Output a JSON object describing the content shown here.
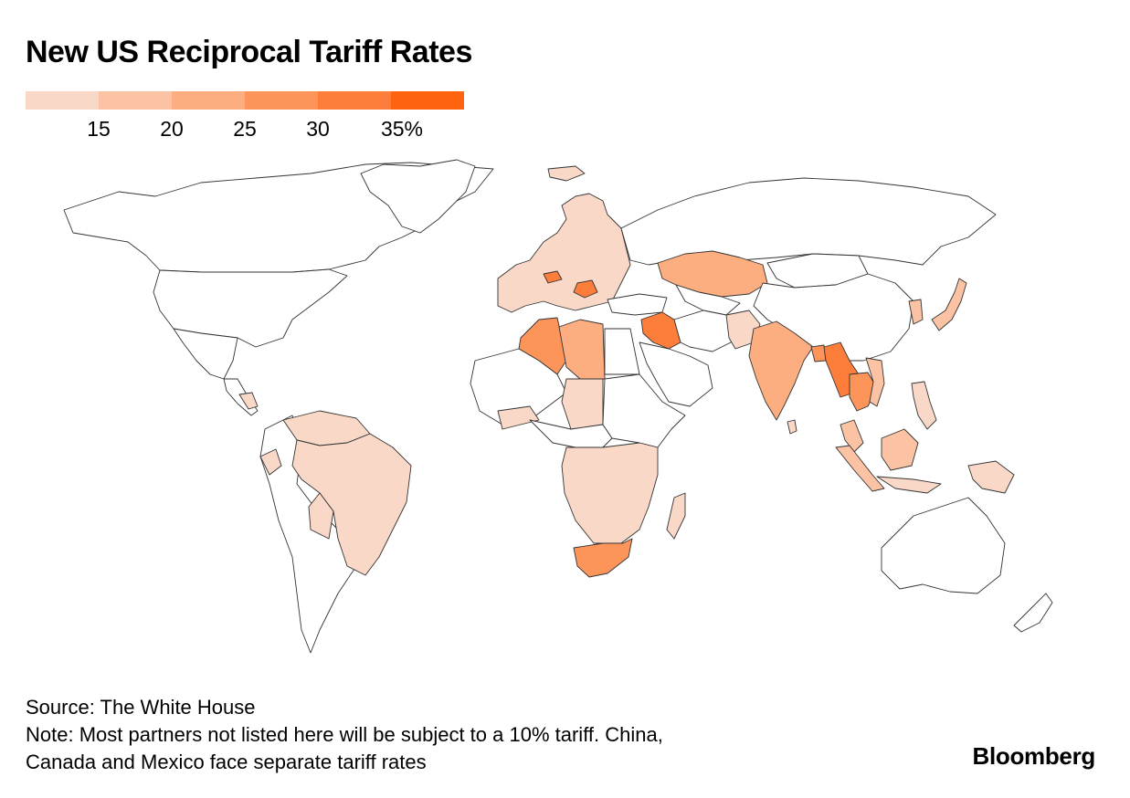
{
  "title": "New US Reciprocal Tariff Rates",
  "legend": {
    "bins": [
      {
        "color": "#f9d8c8"
      },
      {
        "color": "#fbc3a3"
      },
      {
        "color": "#fcae80"
      },
      {
        "color": "#fd955a"
      },
      {
        "color": "#fd7e3a"
      },
      {
        "color": "#fe6410"
      }
    ],
    "labels": [
      "15",
      "20",
      "25",
      "30",
      "35%"
    ]
  },
  "map": {
    "base_color": "#ffffff",
    "stroke_color": "#333333",
    "regions": [
      {
        "name": "canada",
        "level": 0
      },
      {
        "name": "usa",
        "level": 0
      },
      {
        "name": "greenland",
        "level": 0
      },
      {
        "name": "mexico",
        "level": 0
      },
      {
        "name": "central-america",
        "level": 0
      },
      {
        "name": "nicaragua",
        "level": 1
      },
      {
        "name": "south-america-west",
        "level": 0
      },
      {
        "name": "venezuela-guyana",
        "level": 1
      },
      {
        "name": "brazil",
        "level": 1
      },
      {
        "name": "bolivia",
        "level": 1
      },
      {
        "name": "ecuador",
        "level": 1
      },
      {
        "name": "europe",
        "level": 1
      },
      {
        "name": "switzerland",
        "level": 5
      },
      {
        "name": "serbia-bosnia",
        "level": 5
      },
      {
        "name": "iceland",
        "level": 1
      },
      {
        "name": "turkey",
        "level": 0
      },
      {
        "name": "algeria",
        "level": 4
      },
      {
        "name": "libya",
        "level": 3
      },
      {
        "name": "egypt",
        "level": 0
      },
      {
        "name": "syria-iraq",
        "level": 5
      },
      {
        "name": "arabia",
        "level": 0
      },
      {
        "name": "west-africa",
        "level": 0
      },
      {
        "name": "west-africa-shaded",
        "level": 1
      },
      {
        "name": "central-africa",
        "level": 0
      },
      {
        "name": "chad-niger",
        "level": 1
      },
      {
        "name": "east-africa",
        "level": 0
      },
      {
        "name": "southern-africa",
        "level": 1
      },
      {
        "name": "south-africa",
        "level": 4
      },
      {
        "name": "madagascar",
        "level": 1
      },
      {
        "name": "russia",
        "level": 0
      },
      {
        "name": "kazakhstan",
        "level": 3
      },
      {
        "name": "central-asia",
        "level": 0
      },
      {
        "name": "iran-afghanistan",
        "level": 0
      },
      {
        "name": "pakistan",
        "level": 1
      },
      {
        "name": "india",
        "level": 3
      },
      {
        "name": "bangladesh",
        "level": 4
      },
      {
        "name": "china",
        "level": 0
      },
      {
        "name": "mongolia",
        "level": 0
      },
      {
        "name": "myanmar-laos",
        "level": 5
      },
      {
        "name": "thailand-cambodia",
        "level": 4
      },
      {
        "name": "vietnam",
        "level": 2
      },
      {
        "name": "malaysia",
        "level": 2
      },
      {
        "name": "sumatra",
        "level": 2
      },
      {
        "name": "borneo",
        "level": 2
      },
      {
        "name": "indonesia-east",
        "level": 1
      },
      {
        "name": "philippines",
        "level": 1
      },
      {
        "name": "japan",
        "level": 2
      },
      {
        "name": "korea",
        "level": 2
      },
      {
        "name": "australia",
        "level": 0
      },
      {
        "name": "new-zealand",
        "level": 0
      },
      {
        "name": "sri-lanka",
        "level": 1
      }
    ]
  },
  "footer": {
    "source": "Source: The White House",
    "note_line1": "Note: Most partners not listed here will be subject to a 10% tariff. China,",
    "note_line2": "Canada and Mexico face separate tariff rates"
  },
  "brand": "Bloomberg"
}
